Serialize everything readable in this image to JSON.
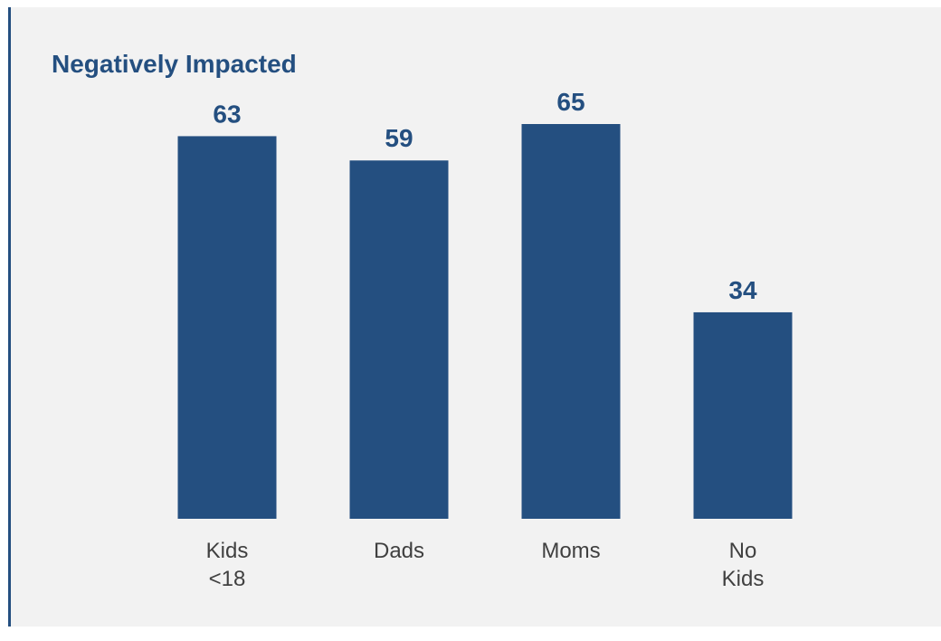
{
  "chart_data": {
    "type": "bar",
    "title": "Negatively Impacted",
    "categories": [
      [
        "Kids",
        "<18"
      ],
      [
        "Dads"
      ],
      [
        "Moms"
      ],
      [
        "No",
        "Kids"
      ]
    ],
    "values": [
      63,
      59,
      65,
      34
    ],
    "data_labels": [
      "63",
      "59",
      "65",
      "34"
    ],
    "ylim": [
      0,
      65
    ],
    "grid": false,
    "colors": {
      "bar": "#244f80",
      "label": "#244f80",
      "category": "#404040",
      "panel": "#f2f2f2"
    }
  }
}
